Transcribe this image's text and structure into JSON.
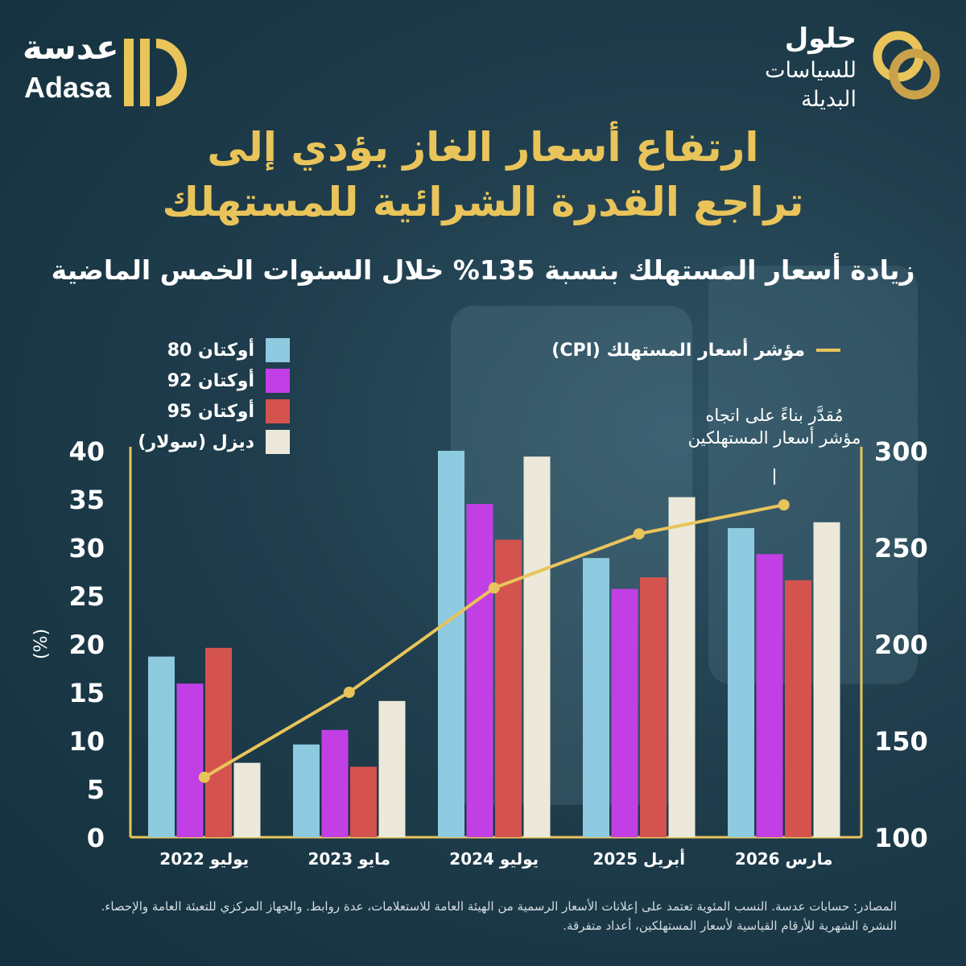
{
  "branding": {
    "left_logo_ar": "عدسة",
    "left_logo_en": "Adasa",
    "right_logo_line1": "حلول",
    "right_logo_line2": "للسياسات",
    "right_logo_line3": "البديلة"
  },
  "title_line1": "ارتفاع أسعار الغاز يؤدي إلى",
  "title_line2": "تراجع القدرة الشرائية للمستهلك",
  "subtitle": "زيادة أسعار المستهلك بنسبة 135% خلال السنوات الخمس الماضية",
  "note": "مُقدَّر بناءً على اتجاه مؤشر أسعار المستهلكين",
  "source": "المصادر: حسابات عدسة. النسب المئوية تعتمد على إعلانات الأسعار الرسمية من الهيئة العامة للاستعلامات، عدة روابط. والجهاز المركزي للتعبئة العامة والإحصاء. النشرة الشهرية للأرقام القياسية لأسعار المستهلكين، أعداد متفرقة.",
  "colors": {
    "octane80": "#8ecae0",
    "octane92": "#c23fe6",
    "octane95": "#d4534f",
    "diesel": "#ece9da",
    "cpi": "#e9c45a",
    "title": "#e9c45a"
  },
  "chart_data": {
    "type": "bar",
    "categories": [
      "يوليو 2022",
      "مايو 2023",
      "يوليو 2024",
      "أبريل 2025",
      "مارس 2026"
    ],
    "series": [
      {
        "name": "أوكتان 80",
        "values": [
          18.7,
          9.6,
          40.0,
          28.9,
          32.0
        ]
      },
      {
        "name": "أوكتان 92",
        "values": [
          15.9,
          11.1,
          34.5,
          25.7,
          29.3
        ]
      },
      {
        "name": "أوكتان 95",
        "values": [
          19.6,
          7.3,
          30.8,
          26.9,
          26.6
        ]
      },
      {
        "name": "ديزل (سولار)",
        "values": [
          7.7,
          14.1,
          39.4,
          35.2,
          32.6
        ]
      }
    ],
    "line_series": {
      "name": "مؤشر أسعار المستهلك (CPI)",
      "values": [
        131,
        175,
        229,
        257,
        272
      ],
      "axis": "right"
    },
    "ylabel": "(%)",
    "ylim": [
      0,
      40
    ],
    "yticks": [
      "0",
      "5",
      "10",
      "15",
      "20",
      "25",
      "30",
      "35",
      "40"
    ],
    "y2lim": [
      100,
      300
    ],
    "y2ticks": [
      "100",
      "150",
      "200",
      "250",
      "300"
    ],
    "grid": false,
    "legend_position": "top"
  }
}
